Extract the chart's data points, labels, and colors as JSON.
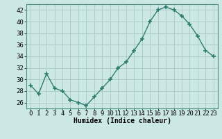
{
  "x": [
    0,
    1,
    2,
    3,
    4,
    5,
    6,
    7,
    8,
    9,
    10,
    11,
    12,
    13,
    14,
    15,
    16,
    17,
    18,
    19,
    20,
    21,
    22,
    23
  ],
  "y": [
    29,
    27.5,
    31,
    28.5,
    28,
    26.5,
    26,
    25.5,
    27,
    28.5,
    30,
    32,
    33,
    35,
    37,
    40,
    42,
    42.5,
    42,
    41,
    39.5,
    37.5,
    35,
    34
  ],
  "line_color": "#2e7d6e",
  "marker": "+",
  "marker_size": 4,
  "marker_linewidth": 1.2,
  "line_width": 1.0,
  "bg_color": "#cce8e4",
  "grid_color": "#b0ceca",
  "xlabel": "Humidex (Indice chaleur)",
  "ylim": [
    25,
    43
  ],
  "xlim": [
    -0.5,
    23.5
  ],
  "yticks": [
    26,
    28,
    30,
    32,
    34,
    36,
    38,
    40,
    42
  ],
  "xticks": [
    0,
    1,
    2,
    3,
    4,
    5,
    6,
    7,
    8,
    9,
    10,
    11,
    12,
    13,
    14,
    15,
    16,
    17,
    18,
    19,
    20,
    21,
    22,
    23
  ],
  "label_fontsize": 7,
  "tick_fontsize": 6.5
}
